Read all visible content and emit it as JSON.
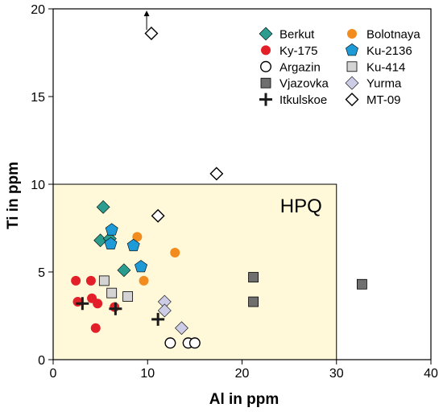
{
  "chart_data": {
    "type": "scatter",
    "xlabel": "Al in ppm",
    "ylabel": "Ti in ppm",
    "xlim": [
      0,
      40
    ],
    "ylim": [
      0,
      20
    ],
    "xticks": [
      "0",
      "10",
      "20",
      "30",
      "40"
    ],
    "yticks": [
      "0",
      "5",
      "10",
      "15",
      "20"
    ],
    "region": {
      "label": "HPQ",
      "x": [
        0,
        30
      ],
      "y": [
        0,
        10
      ],
      "color": "#FFF9D9"
    },
    "legend_position": "top-right",
    "series": [
      {
        "name": "Berkut",
        "marker": "diamond",
        "fill": "#2A9D8F",
        "points": [
          [
            5.3,
            8.7
          ],
          [
            5.0,
            6.8
          ],
          [
            6.0,
            6.9
          ],
          [
            7.5,
            5.1
          ]
        ]
      },
      {
        "name": "Bolotnaya",
        "marker": "circle",
        "fill": "#F28C1E",
        "points": [
          [
            8.9,
            7.0
          ],
          [
            12.9,
            6.1
          ],
          [
            9.6,
            4.5
          ]
        ]
      },
      {
        "name": "Ky-175",
        "marker": "circle",
        "fill": "#E3202A",
        "points": [
          [
            2.4,
            4.5
          ],
          [
            4.0,
            4.5
          ],
          [
            4.1,
            3.5
          ],
          [
            2.6,
            3.3
          ],
          [
            4.7,
            3.2
          ],
          [
            6.5,
            3.0
          ],
          [
            4.5,
            1.8
          ]
        ]
      },
      {
        "name": "Ku-2136",
        "marker": "pentagon",
        "fill": "#1E9BD7",
        "points": [
          [
            6.2,
            7.4
          ],
          [
            6.1,
            6.6
          ],
          [
            8.5,
            6.5
          ],
          [
            9.3,
            5.3
          ]
        ]
      },
      {
        "name": "Argazin",
        "marker": "circle-open",
        "fill": "#FFFFFF",
        "points": [
          [
            12.4,
            0.95
          ],
          [
            14.3,
            0.95
          ],
          [
            15.0,
            0.95
          ]
        ]
      },
      {
        "name": "Ku-414",
        "marker": "square",
        "fill": "#D4D4D4",
        "points": [
          [
            5.4,
            4.5
          ],
          [
            6.2,
            3.8
          ],
          [
            7.9,
            3.6
          ]
        ]
      },
      {
        "name": "Vjazovka",
        "marker": "square",
        "fill": "#6F6F6F",
        "points": [
          [
            21.2,
            4.7
          ],
          [
            21.2,
            3.3
          ],
          [
            32.7,
            4.3
          ]
        ]
      },
      {
        "name": "Yurma",
        "marker": "diamond",
        "fill": "#CCCCE6",
        "points": [
          [
            11.8,
            3.3
          ],
          [
            11.8,
            2.8
          ],
          [
            13.6,
            1.8
          ]
        ]
      },
      {
        "name": "Itkulskoe",
        "marker": "plus",
        "fill": "#1A1A1A",
        "points": [
          [
            3.1,
            3.2
          ],
          [
            6.6,
            2.9
          ],
          [
            11.1,
            2.3
          ]
        ]
      },
      {
        "name": "MT-09",
        "marker": "diamond-open",
        "fill": "#FFFFFF",
        "points": [
          [
            10.4,
            18.6
          ],
          [
            17.3,
            10.6
          ],
          [
            11.1,
            8.2
          ]
        ]
      }
    ],
    "annotations": [
      {
        "type": "arrow-up",
        "x": 9.9,
        "y": 18.8
      }
    ]
  }
}
